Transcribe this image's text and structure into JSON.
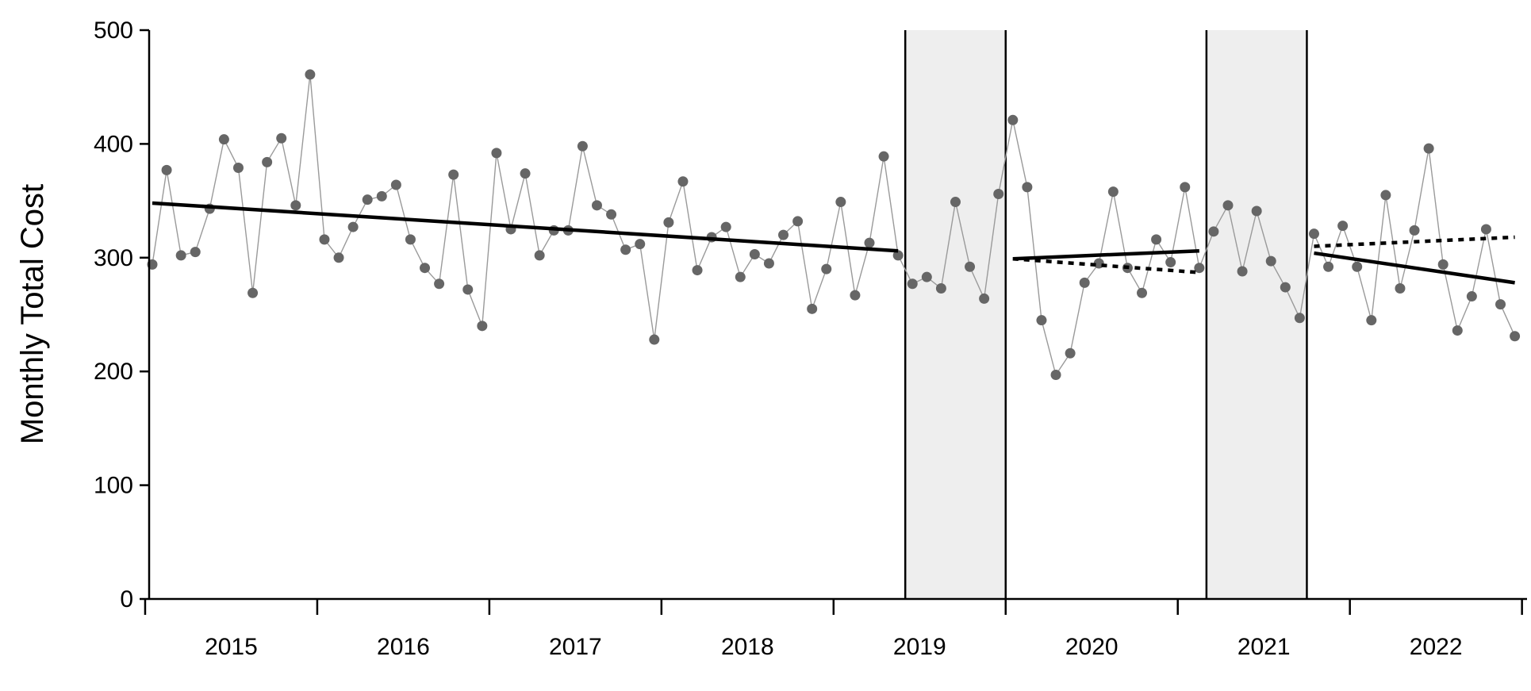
{
  "colors": {
    "point": "#666666",
    "series_line": "#9a9a9a",
    "trend": "#000000",
    "shade": "#eeeeee",
    "axis": "#000000"
  },
  "chart_data": {
    "type": "line",
    "title": "",
    "xlabel": "",
    "ylabel": "Monthly Total Cost",
    "ylim": [
      0,
      500
    ],
    "yticks": [
      0,
      100,
      200,
      300,
      400,
      500
    ],
    "year_labels": [
      "2015",
      "2016",
      "2017",
      "2018",
      "2019",
      "2020",
      "2021",
      "2022"
    ],
    "x_start": "2015-01",
    "x_end": "2022-12",
    "series": [
      {
        "values": [
          294,
          377,
          302,
          305,
          343,
          404,
          379,
          269,
          384,
          405,
          346,
          461,
          316,
          300,
          327,
          351,
          354,
          364,
          316,
          291,
          277,
          373,
          272,
          240,
          392,
          325,
          374,
          302,
          324,
          324,
          398,
          346,
          338,
          307,
          312,
          228,
          331,
          367,
          289,
          318,
          327,
          283,
          303,
          295,
          320,
          332,
          255,
          290,
          349,
          267,
          313,
          389,
          302,
          277,
          283,
          273,
          349,
          292,
          264,
          356,
          421,
          362,
          245,
          197,
          216,
          278,
          295,
          358,
          291,
          269,
          316,
          296,
          362,
          291,
          323,
          346,
          288,
          341,
          297,
          274,
          247,
          321,
          292,
          328,
          292,
          245,
          355,
          273,
          324,
          396,
          294,
          236,
          266,
          325,
          259,
          231
        ]
      }
    ],
    "shaded_periods": [
      {
        "start": "2019-06",
        "end": "2019-12"
      },
      {
        "start": "2021-03",
        "end": "2021-09"
      }
    ],
    "trend_lines": [
      {
        "style": "solid",
        "start": "2015-01",
        "end": "2019-05",
        "y_start": 348,
        "y_end": 306
      },
      {
        "style": "solid",
        "start": "2020-01",
        "end": "2021-02",
        "y_start": 299,
        "y_end": 306
      },
      {
        "style": "dotted",
        "start": "2020-01",
        "end": "2021-02",
        "y_start": 299,
        "y_end": 287
      },
      {
        "style": "solid",
        "start": "2021-10",
        "end": "2022-12",
        "y_start": 304,
        "y_end": 278
      },
      {
        "style": "dotted",
        "start": "2021-10",
        "end": "2022-12",
        "y_start": 310,
        "y_end": 318
      }
    ],
    "grid": false,
    "legend": "none"
  }
}
